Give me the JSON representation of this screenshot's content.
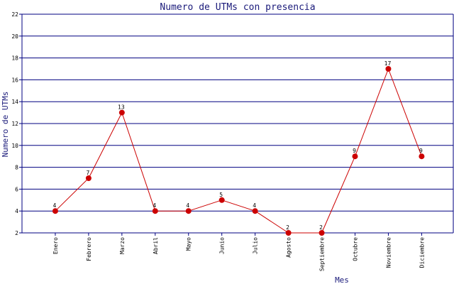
{
  "chart_data": {
    "type": "line",
    "title": "Numero de UTMs con presencia",
    "xlabel": "Mes",
    "ylabel": "Numero de UTMs",
    "categories": [
      "Enero",
      "Febrero",
      "Marzo",
      "Abril",
      "Mayo",
      "Junio",
      "Julio",
      "Agosto",
      "Septiembre",
      "Octubre",
      "Noviembre",
      "Diciembre"
    ],
    "series": [
      {
        "values": [
          4,
          7,
          13,
          4,
          4,
          5,
          4,
          2,
          2,
          9,
          17,
          9
        ]
      }
    ],
    "ylim": [
      2,
      22
    ],
    "yticks": [
      2,
      4,
      6,
      8,
      10,
      12,
      14,
      16,
      18,
      20,
      22
    ],
    "grid": "horizontal",
    "data_labels": true,
    "colors": {
      "line": "#cc0000",
      "marker": "#cc0000",
      "grid": "#000080",
      "axis": "#000080",
      "text": "#1a1a7a"
    }
  }
}
